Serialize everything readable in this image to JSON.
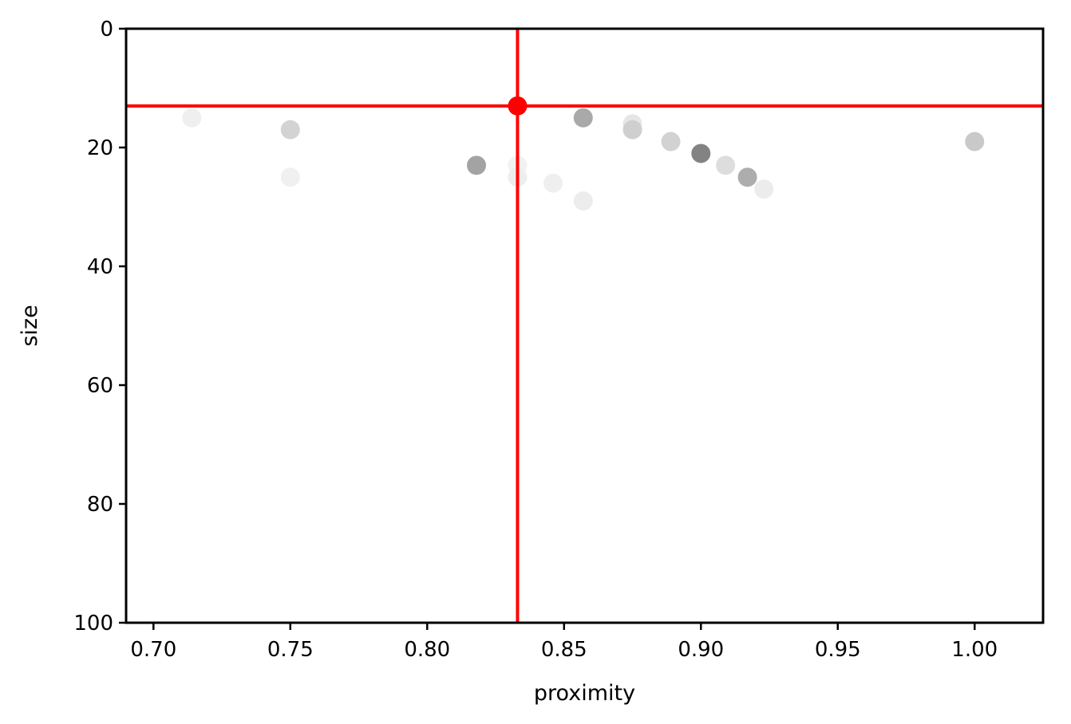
{
  "chart_data": {
    "type": "scatter",
    "title": "",
    "xlabel": "proximity",
    "ylabel": "size",
    "xlim": [
      0.69,
      1.025
    ],
    "ylim": [
      100,
      0
    ],
    "y_inverted": true,
    "grid": false,
    "xticks": [
      0.7,
      0.75,
      0.8,
      0.85,
      0.9,
      0.95,
      1.0
    ],
    "xtick_labels": [
      "0.70",
      "0.75",
      "0.80",
      "0.85",
      "0.90",
      "0.95",
      "1.00"
    ],
    "yticks": [
      0,
      20,
      40,
      60,
      80,
      100
    ],
    "ytick_labels": [
      "0",
      "20",
      "40",
      "60",
      "80",
      "100"
    ],
    "points": [
      {
        "x": 0.714,
        "y": 15,
        "color": "#efefef"
      },
      {
        "x": 0.75,
        "y": 17,
        "color": "#d3d3d3"
      },
      {
        "x": 0.75,
        "y": 25,
        "color": "#f0f0f0"
      },
      {
        "x": 0.818,
        "y": 23,
        "color": "#a3a3a3"
      },
      {
        "x": 0.833,
        "y": 23,
        "color": "#f2f2f2"
      },
      {
        "x": 0.833,
        "y": 25,
        "color": "#eeeeee"
      },
      {
        "x": 0.846,
        "y": 26,
        "color": "#efefef"
      },
      {
        "x": 0.857,
        "y": 15,
        "color": "#a9a9a9"
      },
      {
        "x": 0.857,
        "y": 29,
        "color": "#ececec"
      },
      {
        "x": 0.875,
        "y": 16,
        "color": "#e6e6e6"
      },
      {
        "x": 0.875,
        "y": 17,
        "color": "#cfcfcf"
      },
      {
        "x": 0.889,
        "y": 19,
        "color": "#d2d2d2"
      },
      {
        "x": 0.9,
        "y": 21,
        "color": "#838383"
      },
      {
        "x": 0.909,
        "y": 23,
        "color": "#dddddd"
      },
      {
        "x": 0.917,
        "y": 25,
        "color": "#adadad"
      },
      {
        "x": 0.923,
        "y": 27,
        "color": "#ececec"
      },
      {
        "x": 1.0,
        "y": 19,
        "color": "#c9c9c9"
      }
    ],
    "highlight": {
      "x": 0.833,
      "y": 13,
      "color": "#ff0000"
    },
    "crosshair_color": "#ff0000"
  }
}
